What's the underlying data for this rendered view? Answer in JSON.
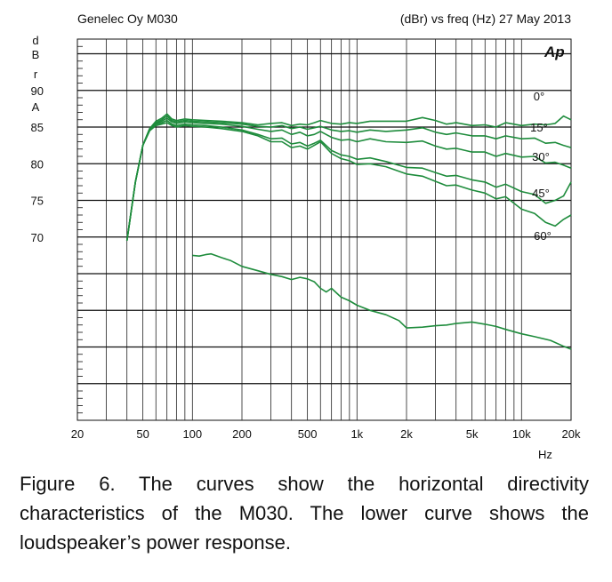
{
  "chart_data": {
    "type": "line",
    "title_left": "Genelec Oy M030",
    "title_right": "(dBr) vs freq (Hz) 27 May 2013",
    "watermark": "Ap",
    "ylabel_chars": [
      "d",
      "B",
      "r",
      "A"
    ],
    "xlabel": "Hz",
    "x_scale": "log",
    "xlim": [
      20,
      20000
    ],
    "ylim": [
      45,
      97
    ],
    "grid": true,
    "x_ticks": [
      20,
      50,
      100,
      200,
      500,
      1000,
      2000,
      5000,
      10000,
      20000
    ],
    "x_tick_labels": [
      "20",
      "50",
      "100",
      "200",
      "500",
      "1k",
      "2k",
      "5k",
      "10k",
      "20k"
    ],
    "y_ticks": [
      90,
      85,
      80,
      75,
      70
    ],
    "y_tick_labels": [
      "90",
      "85",
      "80",
      "75",
      "70"
    ],
    "line_color": "#1e8c3c",
    "series": [
      {
        "name": "0°",
        "x": [
          40,
          45,
          50,
          55,
          60,
          65,
          70,
          75,
          80,
          90,
          100,
          120,
          150,
          200,
          250,
          300,
          350,
          400,
          450,
          500,
          550,
          600,
          700,
          800,
          900,
          1000,
          1200,
          1500,
          2000,
          2500,
          3000,
          3500,
          4000,
          5000,
          6000,
          7000,
          8000,
          10000,
          12000,
          14000,
          16000,
          18000,
          20000
        ],
        "y": [
          69.5,
          77.5,
          82.5,
          84.8,
          85.8,
          86.2,
          86.8,
          86.1,
          85.9,
          86.1,
          86.0,
          85.9,
          85.8,
          85.6,
          85.3,
          85.5,
          85.6,
          85.2,
          85.4,
          85.3,
          85.6,
          85.9,
          85.5,
          85.4,
          85.6,
          85.5,
          85.8,
          85.8,
          85.8,
          86.3,
          85.9,
          85.4,
          85.6,
          85.2,
          85.3,
          85.0,
          85.6,
          85.2,
          85.4,
          85.3,
          85.5,
          86.5,
          86.0
        ]
      },
      {
        "name": "15°",
        "x": [
          40,
          45,
          50,
          55,
          60,
          65,
          70,
          75,
          80,
          90,
          100,
          120,
          150,
          200,
          250,
          300,
          350,
          400,
          450,
          500,
          550,
          600,
          700,
          800,
          900,
          1000,
          1200,
          1500,
          2000,
          2500,
          3000,
          3500,
          4000,
          5000,
          6000,
          7000,
          8000,
          10000,
          12000,
          14000,
          16000,
          18000,
          20000
        ],
        "y": [
          69.5,
          77.5,
          82.5,
          84.8,
          85.6,
          86.0,
          86.5,
          85.9,
          85.7,
          85.9,
          85.8,
          85.7,
          85.6,
          85.4,
          85.1,
          85.0,
          85.2,
          84.8,
          85.0,
          84.7,
          84.9,
          85.1,
          84.6,
          84.4,
          84.5,
          84.3,
          84.6,
          84.4,
          84.6,
          84.9,
          84.3,
          84.0,
          84.2,
          83.8,
          83.8,
          83.4,
          83.8,
          83.4,
          83.5,
          82.8,
          82.9,
          82.5,
          82.2
        ]
      },
      {
        "name": "30°",
        "x": [
          40,
          45,
          50,
          55,
          60,
          65,
          70,
          75,
          80,
          90,
          100,
          120,
          150,
          200,
          250,
          300,
          350,
          400,
          450,
          500,
          550,
          600,
          700,
          800,
          900,
          1000,
          1200,
          1500,
          2000,
          2500,
          3000,
          3500,
          4000,
          5000,
          6000,
          7000,
          8000,
          10000,
          12000,
          14000,
          16000,
          18000,
          20000
        ],
        "y": [
          69.5,
          77.5,
          82.5,
          84.8,
          85.5,
          85.8,
          86.2,
          85.7,
          85.5,
          85.7,
          85.6,
          85.5,
          85.4,
          85.1,
          84.7,
          84.4,
          84.6,
          84.0,
          84.3,
          83.8,
          84.0,
          84.4,
          83.6,
          83.2,
          83.3,
          83.0,
          83.4,
          83.0,
          82.9,
          83.1,
          82.4,
          82.0,
          82.1,
          81.6,
          81.6,
          81.0,
          81.4,
          80.9,
          81.0,
          80.1,
          80.2,
          79.8,
          79.4
        ]
      },
      {
        "name": "45°",
        "x": [
          40,
          45,
          50,
          55,
          60,
          65,
          70,
          75,
          80,
          90,
          100,
          120,
          150,
          200,
          250,
          300,
          350,
          400,
          450,
          500,
          550,
          600,
          700,
          800,
          900,
          1000,
          1200,
          1500,
          2000,
          2500,
          3000,
          3500,
          4000,
          5000,
          6000,
          7000,
          8000,
          10000,
          12000,
          14000,
          16000,
          18000,
          20000
        ],
        "y": [
          69.5,
          77.5,
          82.5,
          84.6,
          85.4,
          85.6,
          85.9,
          85.4,
          85.2,
          85.4,
          85.3,
          85.2,
          85.0,
          84.6,
          84.0,
          83.4,
          83.5,
          82.7,
          82.9,
          82.4,
          82.8,
          83.2,
          81.8,
          81.2,
          81.0,
          80.6,
          80.8,
          80.3,
          79.5,
          79.4,
          78.8,
          78.3,
          78.4,
          77.8,
          77.5,
          76.8,
          77.2,
          76.2,
          75.8,
          74.6,
          75.0,
          75.6,
          77.5
        ]
      },
      {
        "name": "60°",
        "x": [
          40,
          45,
          50,
          55,
          60,
          65,
          70,
          75,
          80,
          90,
          100,
          120,
          150,
          200,
          250,
          300,
          350,
          400,
          450,
          500,
          550,
          600,
          700,
          800,
          900,
          1000,
          1200,
          1500,
          2000,
          2500,
          3000,
          3500,
          4000,
          5000,
          6000,
          7000,
          8000,
          10000,
          12000,
          14000,
          16000,
          18000,
          20000
        ],
        "y": [
          69.5,
          77.5,
          82.5,
          84.5,
          85.2,
          85.4,
          85.6,
          85.2,
          85.0,
          85.2,
          85.1,
          85.0,
          84.8,
          84.4,
          83.8,
          83.0,
          83.0,
          82.2,
          82.4,
          82.0,
          82.5,
          83.0,
          81.4,
          80.7,
          80.4,
          79.9,
          80.0,
          79.6,
          78.6,
          78.3,
          77.6,
          77.0,
          77.1,
          76.4,
          76.0,
          75.2,
          75.5,
          73.8,
          73.2,
          72.0,
          71.5,
          72.4,
          73.0
        ]
      },
      {
        "name": "power",
        "x": [
          100,
          110,
          120,
          130,
          150,
          170,
          200,
          250,
          300,
          350,
          400,
          450,
          500,
          550,
          600,
          650,
          700,
          800,
          900,
          1000,
          1200,
          1500,
          1800,
          2000,
          2500,
          3000,
          3500,
          4000,
          5000,
          6000,
          7000,
          8000,
          10000,
          12000,
          15000,
          18000,
          20000
        ],
        "y": [
          67.5,
          67.4,
          67.6,
          67.7,
          67.2,
          66.8,
          66.0,
          65.4,
          64.9,
          64.6,
          64.2,
          64.5,
          64.3,
          63.9,
          63.0,
          62.5,
          63.0,
          61.8,
          61.3,
          60.7,
          60.0,
          59.4,
          58.6,
          57.6,
          57.7,
          57.9,
          58.0,
          58.2,
          58.4,
          58.1,
          57.8,
          57.4,
          56.8,
          56.4,
          55.9,
          55.1,
          54.7
        ]
      }
    ]
  },
  "caption": "Figure 6. The curves show the horizontal directivity characteristics of the M030. The lower curve shows the loudspeaker’s power response."
}
